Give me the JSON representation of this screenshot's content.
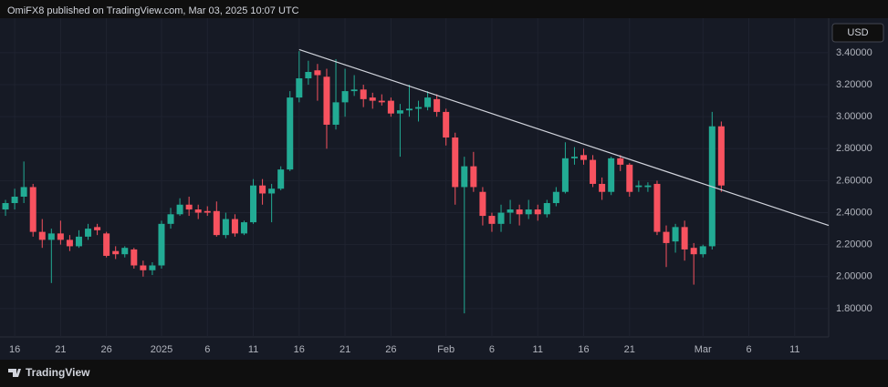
{
  "header": {
    "text": "OmiFX8 published on TradingView.com, Mar 03, 2025 10:07 UTC"
  },
  "footer": {
    "brand": "TradingView"
  },
  "chart_data": {
    "type": "candlestick",
    "currency": "USD",
    "up_color": "#22ab94",
    "down_color": "#f7525f",
    "grid": true,
    "x": [
      15,
      16,
      17,
      18,
      19,
      20,
      21,
      22,
      23,
      24,
      25,
      26,
      27,
      28,
      29,
      30,
      31,
      32,
      33,
      34,
      35,
      36,
      37,
      38,
      39,
      40,
      41,
      42,
      43,
      44,
      45,
      46,
      47,
      48,
      49,
      50,
      51,
      52,
      53,
      54,
      55,
      56,
      57,
      58,
      59,
      60,
      61,
      62,
      63,
      64,
      65,
      66,
      67,
      68,
      69,
      70,
      71,
      72,
      73,
      74,
      75,
      76,
      77,
      78,
      79,
      80,
      81,
      82,
      83,
      84,
      85,
      86,
      87,
      88,
      89,
      90,
      91,
      92,
      93
    ],
    "open": [
      2.42,
      2.46,
      2.5,
      2.56,
      2.28,
      2.23,
      2.27,
      2.23,
      2.19,
      2.25,
      2.31,
      2.27,
      2.16,
      2.14,
      2.17,
      2.07,
      2.04,
      2.07,
      2.33,
      2.39,
      2.45,
      2.42,
      2.41,
      2.41,
      2.26,
      2.36,
      2.27,
      2.34,
      2.57,
      2.52,
      2.55,
      2.67,
      3.12,
      3.24,
      3.29,
      3.25,
      2.95,
      3.09,
      3.16,
      3.17,
      3.12,
      3.1,
      3.1,
      3.02,
      3.04,
      3.05,
      3.06,
      3.11,
      3.03,
      2.87,
      2.56,
      2.69,
      2.53,
      2.38,
      2.33,
      2.4,
      2.42,
      2.39,
      2.42,
      2.39,
      2.46,
      2.53,
      2.74,
      2.76,
      2.73,
      2.58,
      2.53,
      2.74,
      2.7,
      2.56,
      2.56,
      2.58,
      2.28,
      2.22,
      2.31,
      2.18,
      2.14,
      2.19,
      2.94
    ],
    "high": [
      2.48,
      2.55,
      2.72,
      2.58,
      2.36,
      2.3,
      2.35,
      2.26,
      2.29,
      2.33,
      2.33,
      2.28,
      2.19,
      2.19,
      2.18,
      2.1,
      2.09,
      2.35,
      2.43,
      2.49,
      2.5,
      2.45,
      2.44,
      2.47,
      2.4,
      2.39,
      2.35,
      2.61,
      2.61,
      2.58,
      2.69,
      3.16,
      3.41,
      3.35,
      3.33,
      3.3,
      3.36,
      3.3,
      3.26,
      3.2,
      3.15,
      3.14,
      3.12,
      3.08,
      3.2,
      3.1,
      3.16,
      3.14,
      3.05,
      2.9,
      2.75,
      2.78,
      2.56,
      2.4,
      2.45,
      2.48,
      2.45,
      2.48,
      2.45,
      2.48,
      2.56,
      2.84,
      2.81,
      2.8,
      2.76,
      2.62,
      2.75,
      2.76,
      2.71,
      2.6,
      2.59,
      2.6,
      2.32,
      2.33,
      2.35,
      2.21,
      2.2,
      3.03,
      2.97
    ],
    "low": [
      2.38,
      2.42,
      2.46,
      2.25,
      2.18,
      1.96,
      2.2,
      2.16,
      2.18,
      2.23,
      2.26,
      2.12,
      2.11,
      2.12,
      2.05,
      2.0,
      2.01,
      2.05,
      2.3,
      2.38,
      2.38,
      2.36,
      2.38,
      2.25,
      2.24,
      2.25,
      2.26,
      2.33,
      2.45,
      2.34,
      2.54,
      2.66,
      3.09,
      3.2,
      3.1,
      2.8,
      2.92,
      3.0,
      3.13,
      3.06,
      3.05,
      3.07,
      3.0,
      2.75,
      3.0,
      2.97,
      3.04,
      3.0,
      2.82,
      2.45,
      1.77,
      2.53,
      2.32,
      2.28,
      2.28,
      2.33,
      2.32,
      2.36,
      2.35,
      2.37,
      2.44,
      2.52,
      2.7,
      2.7,
      2.56,
      2.48,
      2.51,
      2.66,
      2.5,
      2.53,
      2.53,
      2.26,
      2.06,
      2.15,
      2.1,
      1.95,
      2.12,
      2.17,
      2.53
    ],
    "close": [
      2.46,
      2.5,
      2.56,
      2.28,
      2.23,
      2.27,
      2.23,
      2.19,
      2.25,
      2.3,
      2.29,
      2.13,
      2.14,
      2.18,
      2.07,
      2.04,
      2.07,
      2.33,
      2.39,
      2.45,
      2.42,
      2.4,
      2.4,
      2.26,
      2.36,
      2.27,
      2.34,
      2.57,
      2.52,
      2.55,
      2.67,
      3.12,
      3.24,
      3.28,
      3.26,
      2.95,
      3.09,
      3.16,
      3.17,
      3.11,
      3.1,
      3.09,
      3.02,
      3.04,
      3.05,
      3.06,
      3.12,
      3.03,
      2.87,
      2.56,
      2.69,
      2.56,
      2.38,
      2.33,
      2.4,
      2.42,
      2.39,
      2.42,
      2.39,
      2.46,
      2.53,
      2.74,
      2.75,
      2.73,
      2.58,
      2.53,
      2.74,
      2.7,
      2.53,
      2.57,
      2.57,
      2.28,
      2.21,
      2.31,
      2.17,
      2.14,
      2.19,
      2.94,
      2.57
    ],
    "trendline": {
      "x": [
        47,
        104.7
      ],
      "y": [
        3.42,
        2.32
      ],
      "color": "#d1d4dc"
    },
    "xlim": [
      14.4,
      104.7
    ],
    "ylim": [
      1.623,
      3.616
    ],
    "xticks": [
      16,
      21,
      26,
      {
        "value": 32,
        "label": "2025"
      },
      {
        "value": 37,
        "label": "6"
      },
      {
        "value": 42,
        "label": "11"
      },
      {
        "value": 47,
        "label": "16"
      },
      {
        "value": 52,
        "label": "21"
      },
      {
        "value": 57,
        "label": "26"
      },
      {
        "value": 63,
        "label": "Feb"
      },
      {
        "value": 68,
        "label": "6"
      },
      {
        "value": 73,
        "label": "11"
      },
      {
        "value": 78,
        "label": "16"
      },
      {
        "value": 83,
        "label": "21"
      },
      {
        "value": 91,
        "label": "Mar"
      },
      {
        "value": 96,
        "label": "6"
      },
      {
        "value": 101,
        "label": "11"
      }
    ],
    "yticks": [
      {
        "value": 1.8,
        "label": "1.80000"
      },
      {
        "value": 2.0,
        "label": "2.00000"
      },
      {
        "value": 2.2,
        "label": "2.20000"
      },
      {
        "value": 2.4,
        "label": "2.40000"
      },
      {
        "value": 2.6,
        "label": "2.60000"
      },
      {
        "value": 2.8,
        "label": "2.80000"
      },
      {
        "value": 3.0,
        "label": "3.00000"
      },
      {
        "value": 3.2,
        "label": "3.20000"
      },
      {
        "value": 3.4,
        "label": "3.40000"
      }
    ]
  }
}
